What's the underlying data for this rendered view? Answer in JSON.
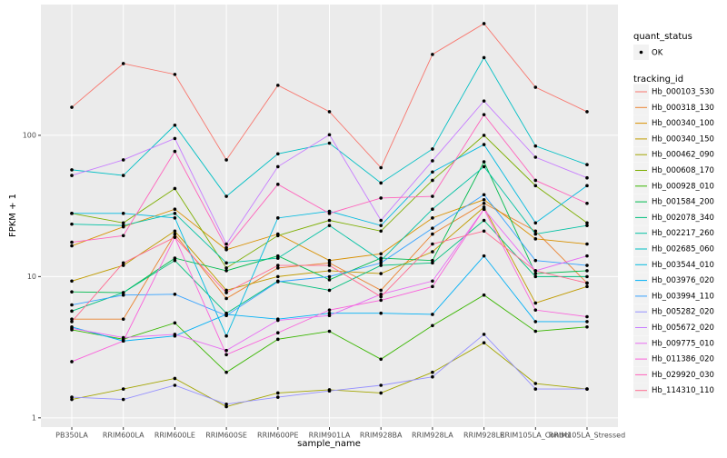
{
  "chart_data": {
    "type": "line",
    "log_scale": true,
    "grid": true,
    "xlabel": "sample_name",
    "ylabel": "FPKM + 1",
    "categories": [
      "PB350LA",
      "RRIM600LA",
      "RRIM600LE",
      "RRIM600SE",
      "RRIM600PE",
      "RRIM901LA",
      "RRIM928BA",
      "RRIM928LA",
      "RRIM928LE",
      "RRIM105LA_Control",
      "RRIM105LA_Stressed"
    ],
    "ylim": [
      0.86,
      843
    ],
    "yticks": [
      1,
      10,
      100
    ],
    "point_legend": {
      "title": "quant_status",
      "label": "OK",
      "color": "#000000"
    },
    "legend_title": "tracking_id",
    "series": [
      {
        "name": "Hb_000103_530",
        "color": "#F8766D",
        "values": [
          158,
          322,
          270,
          67,
          226,
          147,
          59,
          374,
          618,
          219,
          147
        ]
      },
      {
        "name": "Hb_000318_130",
        "color": "#EA8331",
        "values": [
          5,
          5,
          20,
          7,
          11.5,
          12.5,
          8,
          20,
          33,
          21,
          9
        ]
      },
      {
        "name": "Hb_000340_100",
        "color": "#D89000",
        "values": [
          16.5,
          22.5,
          30,
          15.5,
          20,
          13,
          14.5,
          26,
          35,
          18.5,
          17
        ]
      },
      {
        "name": "Hb_000340_150",
        "color": "#C09B00",
        "values": [
          9.3,
          12,
          21,
          8,
          10,
          11,
          10.5,
          15,
          31,
          6.5,
          8.5
        ]
      },
      {
        "name": "Hb_000462_090",
        "color": "#A3A500",
        "values": [
          1.35,
          1.6,
          1.9,
          1.2,
          1.5,
          1.58,
          1.5,
          2.1,
          3.4,
          1.75,
          1.6
        ]
      },
      {
        "name": "Hb_000608_170",
        "color": "#7CAE00",
        "values": [
          28,
          24,
          42,
          11.5,
          19.5,
          25,
          21,
          48,
          100,
          44,
          24
        ]
      },
      {
        "name": "Hb_000928_010",
        "color": "#39B600",
        "values": [
          4.2,
          3.6,
          4.7,
          2.1,
          3.6,
          4.1,
          2.6,
          4.5,
          7.4,
          4.1,
          4.4
        ]
      },
      {
        "name": "Hb_001584_200",
        "color": "#00BB4E",
        "values": [
          7.8,
          7.7,
          13.5,
          11,
          14,
          9.5,
          13.5,
          13,
          65,
          10.5,
          11
        ]
      },
      {
        "name": "Hb_002078_340",
        "color": "#00BF7D",
        "values": [
          5.7,
          7.7,
          13,
          5.5,
          9.3,
          8,
          12,
          12.5,
          25,
          10,
          10
        ]
      },
      {
        "name": "Hb_002217_260",
        "color": "#00C1A3",
        "values": [
          23.5,
          23,
          28,
          12.5,
          13.5,
          23,
          13,
          30,
          60,
          20,
          23
        ]
      },
      {
        "name": "Hb_002685_060",
        "color": "#00BFC4",
        "values": [
          57,
          52,
          118,
          37,
          74,
          88,
          46,
          80,
          355,
          84,
          62
        ]
      },
      {
        "name": "Hb_003544_010",
        "color": "#00BAE0",
        "values": [
          28,
          28,
          26,
          3.8,
          26,
          29,
          23,
          55,
          86,
          24,
          44
        ]
      },
      {
        "name": "Hb_003976_020",
        "color": "#00B0F6",
        "values": [
          4.4,
          3.5,
          3.8,
          5.4,
          5,
          5.5,
          5.5,
          5.4,
          14,
          4.8,
          4.8
        ]
      },
      {
        "name": "Hb_003994_110",
        "color": "#35A2FF",
        "values": [
          6.3,
          7.4,
          7.5,
          5.3,
          9.2,
          10,
          12.5,
          22,
          38,
          13,
          12
        ]
      },
      {
        "name": "Hb_005282_020",
        "color": "#9590FF",
        "values": [
          1.4,
          1.35,
          1.7,
          1.25,
          1.4,
          1.55,
          1.7,
          1.95,
          3.9,
          1.6,
          1.6
        ]
      },
      {
        "name": "Hb_005672_020",
        "color": "#C77CFF",
        "values": [
          52,
          67,
          95,
          17,
          60,
          101,
          25,
          66,
          175,
          70,
          50
        ]
      },
      {
        "name": "Hb_009775_010",
        "color": "#E76BF3",
        "values": [
          4.3,
          3.7,
          3.9,
          3,
          4.9,
          5.3,
          7.5,
          9.3,
          30,
          11,
          14
        ]
      },
      {
        "name": "Hb_011386_020",
        "color": "#FA62DB",
        "values": [
          2.5,
          3.5,
          19,
          2.8,
          4,
          5.8,
          6.8,
          8.5,
          30,
          5.8,
          5.2
        ]
      },
      {
        "name": "Hb_029920_030",
        "color": "#FF62BC",
        "values": [
          17.5,
          19.5,
          77,
          16,
          45,
          28,
          36,
          37,
          140,
          48,
          33
        ]
      },
      {
        "name": "Hb_114310_110",
        "color": "#FF6C91",
        "values": [
          4.8,
          12.5,
          19,
          7.7,
          12,
          12,
          7.2,
          17,
          21,
          11,
          9
        ]
      }
    ]
  }
}
